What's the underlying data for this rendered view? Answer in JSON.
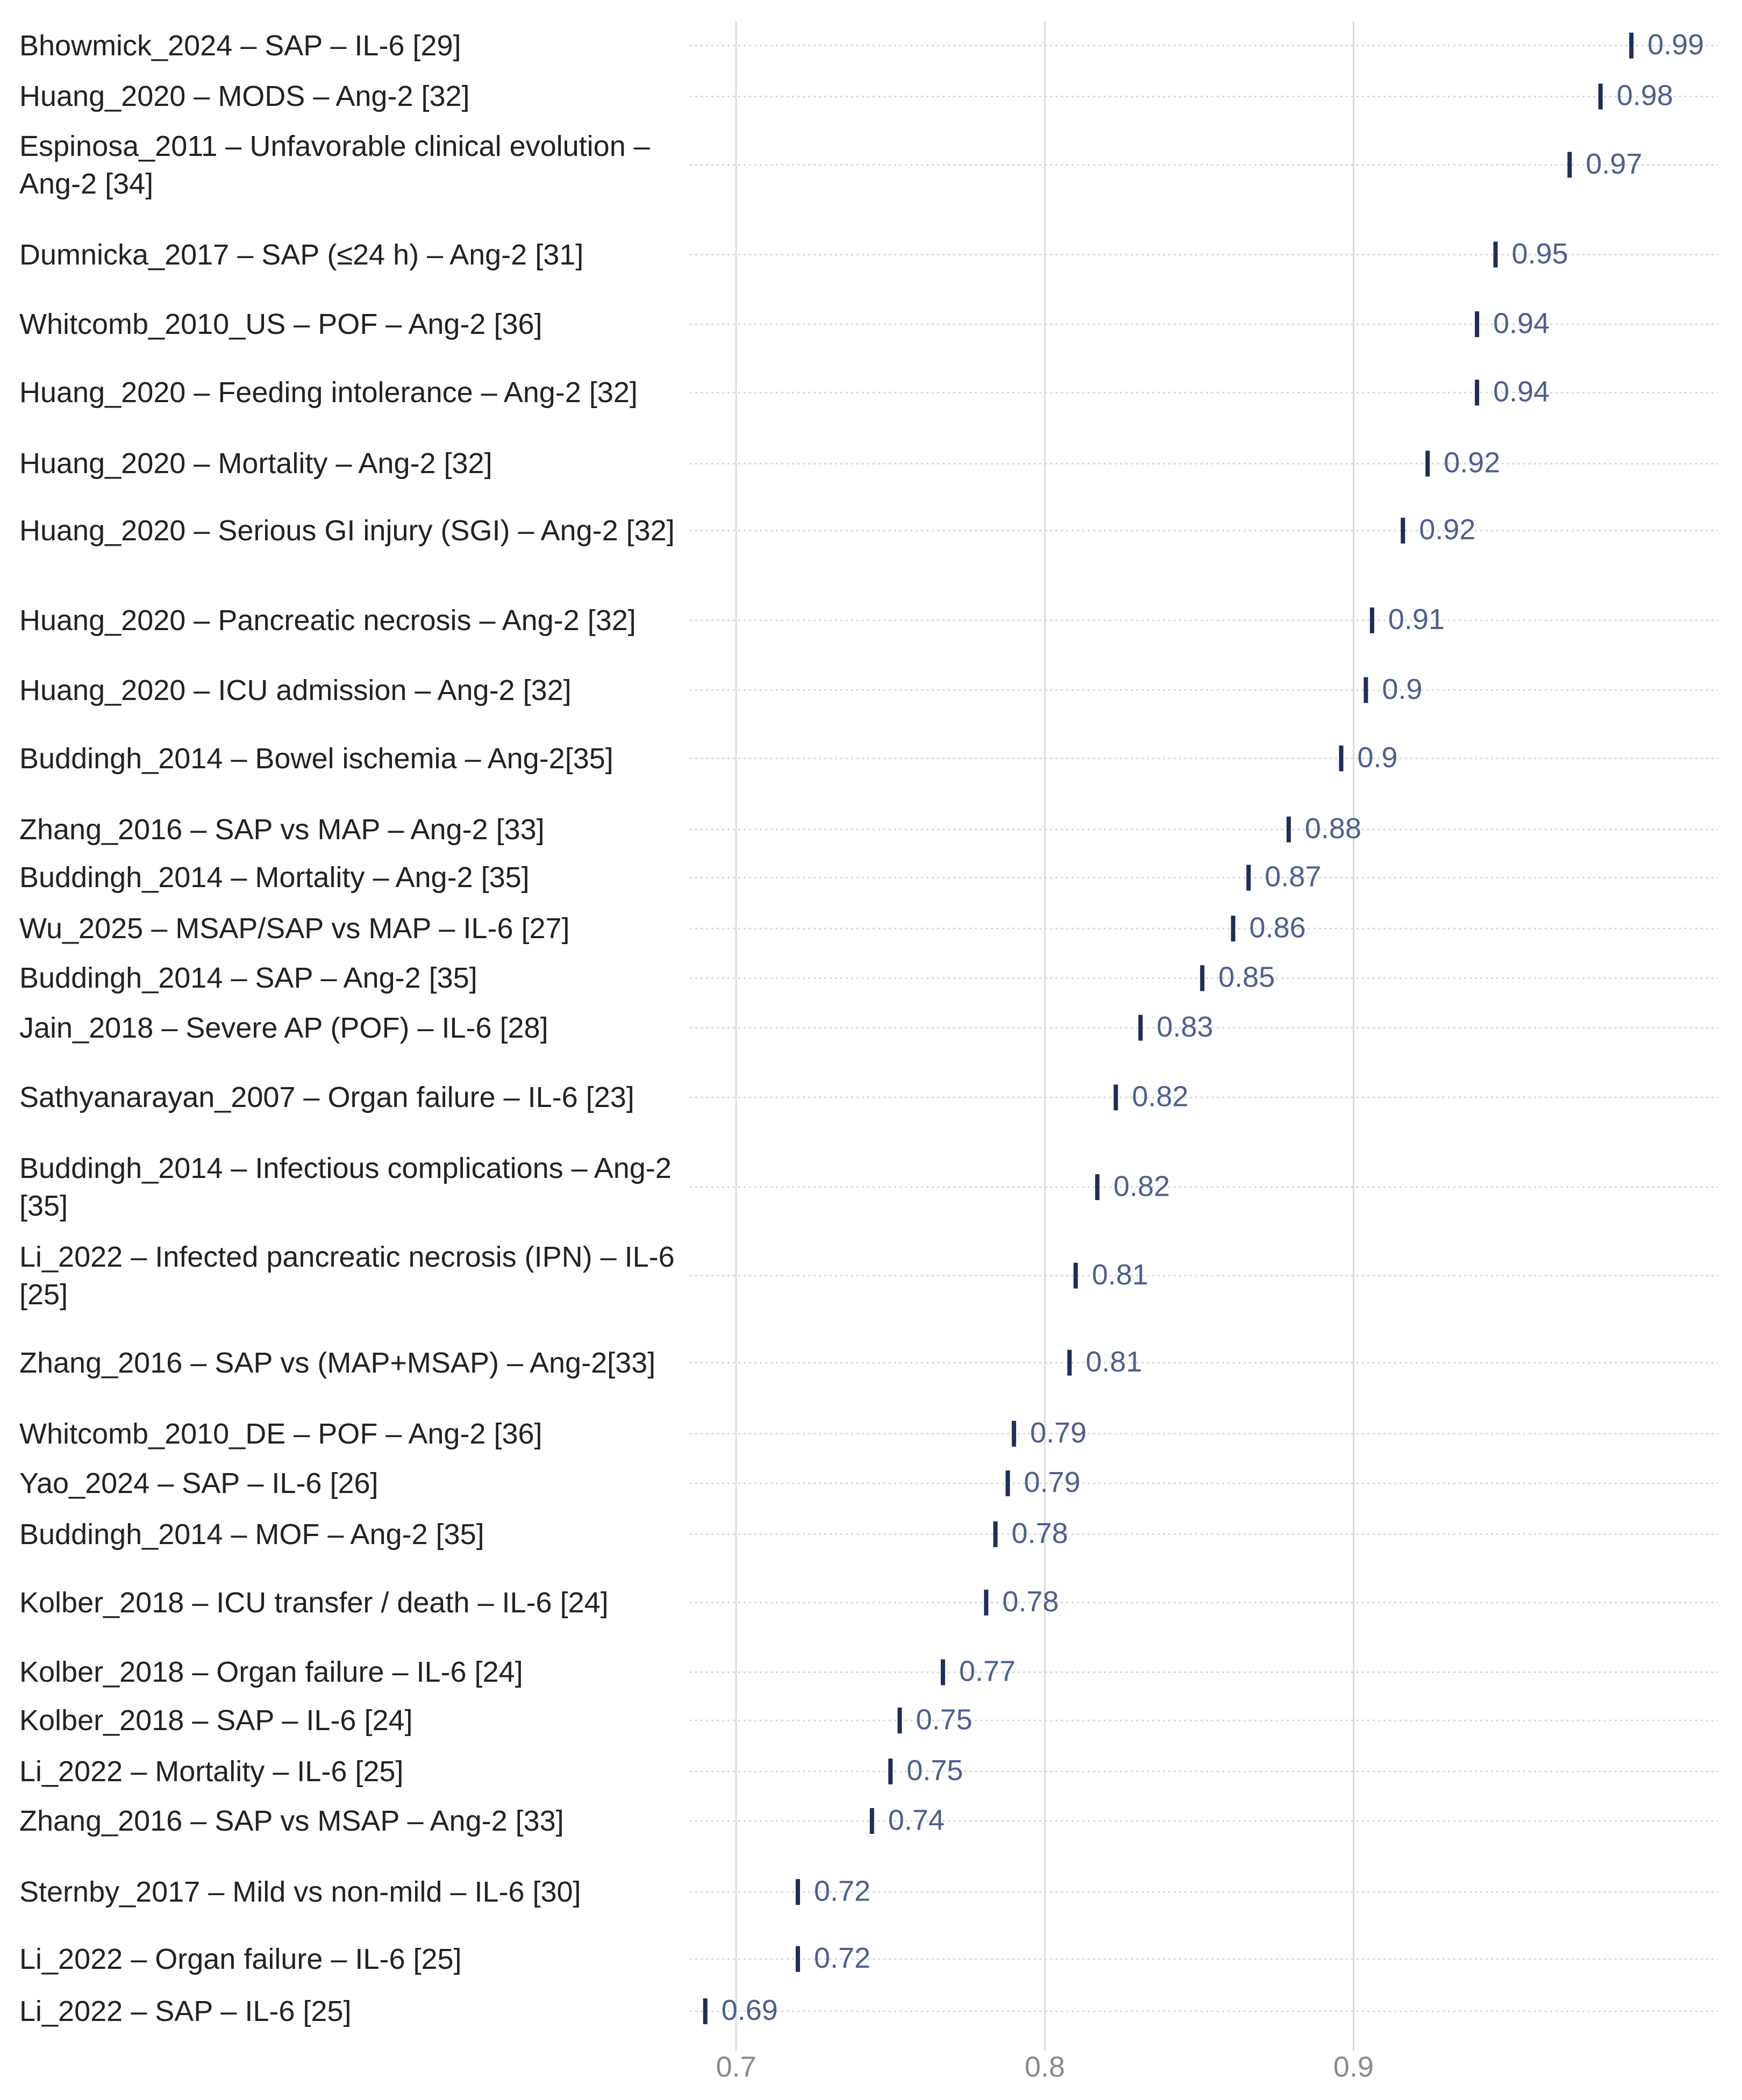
{
  "chart_data": {
    "type": "dot",
    "categories": [
      "Bhowmick_2024 – SAP – IL-6 [29]",
      "Huang_2020 – MODS – Ang-2 [32]",
      "Espinosa_2011 – Unfavorable clinical evolution – Ang-2 [34]",
      "Dumnicka_2017 – SAP (≤24 h) – Ang-2 [31]",
      "Whitcomb_2010_US – POF – Ang-2 [36]",
      "Huang_2020 – Feeding intolerance – Ang-2 [32]",
      "Huang_2020 – Mortality – Ang-2 [32]",
      "Huang_2020 – Serious GI injury (SGI) – Ang-2 [32]",
      "Huang_2020 – Pancreatic necrosis – Ang-2 [32]",
      "Huang_2020 – ICU admission – Ang-2 [32]",
      "Buddingh_2014 – Bowel ischemia – Ang-2[35]",
      "Zhang_2016 – SAP vs MAP – Ang-2 [33]",
      "Buddingh_2014 – Mortality – Ang-2 [35]",
      "Wu_2025 – MSAP/SAP vs MAP – IL-6 [27]",
      "Buddingh_2014 – SAP – Ang-2 [35]",
      "Jain_2018 – Severe AP (POF) – IL-6 [28]",
      "Sathyanarayan_2007 – Organ failure – IL-6 [23]",
      "Buddingh_2014 – Infectious complications – Ang-2 [35]",
      "Li_2022 – Infected pancreatic necrosis (IPN) – IL-6 [25]",
      "Zhang_2016 – SAP vs (MAP+MSAP) – Ang-2[33]",
      "Whitcomb_2010_DE – POF – Ang-2 [36]",
      "Yao_2024 – SAP – IL-6 [26]",
      "Buddingh_2014 – MOF – Ang-2 [35]",
      "Kolber_2018 – ICU transfer / death – IL-6 [24]",
      "Kolber_2018 – Organ failure – IL-6 [24]",
      "Kolber_2018 – SAP – IL-6 [24]",
      "Li_2022 – Mortality – IL-6 [25]",
      "Zhang_2016 – SAP vs MSAP – Ang-2 [33]",
      "Sternby_2017 – Mild vs non-mild – IL-6 [30]",
      "Li_2022 – Organ failure – IL-6 [25]",
      "Li_2022 – SAP – IL-6 [25]"
    ],
    "values": [
      0.99,
      0.98,
      0.97,
      0.946,
      0.94,
      0.94,
      0.924,
      0.916,
      0.906,
      0.904,
      0.896,
      0.879,
      0.866,
      0.861,
      0.851,
      0.831,
      0.823,
      0.817,
      0.81,
      0.808,
      0.79,
      0.788,
      0.784,
      0.781,
      0.767,
      0.753,
      0.75,
      0.744,
      0.72,
      0.72,
      0.69
    ],
    "value_labels": [
      "0.99",
      "0.98",
      "0.97",
      "0.95",
      "0.94",
      "0.94",
      "0.92",
      "0.92",
      "0.91",
      "0.9",
      "0.9",
      "0.88",
      "0.87",
      "0.86",
      "0.85",
      "0.83",
      "0.82",
      "0.82",
      "0.81",
      "0.81",
      "0.79",
      "0.79",
      "0.78",
      "0.78",
      "0.77",
      "0.75",
      "0.75",
      "0.74",
      "0.72",
      "0.72",
      "0.69"
    ],
    "color": "#1f2d5a",
    "xlim": [
      0.685,
      1.018
    ],
    "xticks": [
      0.7,
      0.8,
      0.9
    ],
    "grid": true
  }
}
